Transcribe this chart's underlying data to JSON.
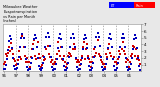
{
  "title": "Milwaukee Weather Evapotranspiration vs Rain per Month (Inches)",
  "bg_color": "#e8e8e8",
  "plot_bg": "#ffffff",
  "legend_et_color": "#0000ff",
  "legend_rain_color": "#ff0000",
  "et_color": "#0000bb",
  "rain_color": "#cc0000",
  "ylim": [
    0,
    7
  ],
  "ytick_vals": [
    1,
    2,
    3,
    4,
    5,
    6,
    7
  ],
  "years": [
    "96",
    "97",
    "98",
    "99",
    "00",
    "01",
    "02",
    "03",
    "04",
    "05",
    "06"
  ],
  "et_data": [
    0.3,
    0.4,
    1.0,
    1.8,
    3.2,
    4.5,
    5.3,
    4.8,
    3.5,
    2.0,
    0.8,
    0.3,
    0.3,
    0.5,
    1.1,
    2.2,
    3.6,
    5.0,
    5.6,
    5.0,
    3.7,
    1.9,
    0.7,
    0.2,
    0.3,
    0.4,
    1.2,
    2.0,
    3.4,
    4.8,
    5.4,
    4.9,
    3.6,
    2.0,
    0.8,
    0.3,
    0.2,
    0.5,
    1.3,
    2.2,
    3.7,
    5.1,
    5.7,
    5.1,
    3.8,
    2.1,
    0.7,
    0.2,
    0.3,
    0.4,
    1.1,
    1.9,
    3.5,
    4.9,
    5.5,
    4.8,
    3.6,
    1.9,
    0.8,
    0.2,
    0.2,
    0.5,
    1.2,
    2.1,
    3.6,
    5.0,
    5.6,
    5.0,
    3.7,
    2.0,
    0.7,
    0.2,
    0.3,
    0.4,
    1.1,
    2.0,
    3.4,
    4.8,
    5.4,
    4.9,
    3.5,
    2.0,
    0.8,
    0.2,
    0.2,
    0.5,
    1.3,
    2.2,
    3.7,
    5.1,
    5.7,
    5.1,
    3.8,
    2.1,
    0.7,
    0.2,
    0.3,
    0.4,
    1.1,
    1.9,
    3.5,
    4.9,
    5.5,
    4.8,
    3.6,
    1.9,
    0.8,
    0.2,
    0.2,
    0.5,
    1.2,
    2.1,
    3.6,
    5.0,
    5.6,
    5.0,
    3.7,
    2.0,
    0.7,
    0.2,
    0.3,
    0.4,
    1.1,
    2.0,
    3.4,
    4.8,
    5.4,
    4.9,
    3.5,
    2.0,
    0.8,
    0.2
  ],
  "rain_data": [
    1.1,
    1.4,
    2.6,
    2.3,
    2.8,
    3.6,
    3.0,
    4.2,
    3.3,
    2.6,
    1.9,
    1.6,
    0.9,
    1.1,
    1.7,
    3.0,
    2.2,
    1.9,
    5.2,
    3.6,
    2.3,
    1.4,
    2.0,
    1.4,
    1.4,
    0.7,
    2.1,
    3.3,
    4.0,
    4.6,
    2.3,
    1.9,
    3.6,
    4.3,
    2.6,
    2.0,
    0.7,
    0.9,
    2.3,
    1.7,
    1.9,
    3.3,
    3.8,
    2.6,
    2.1,
    1.4,
    1.7,
    1.1,
    1.1,
    1.4,
    1.9,
    2.6,
    4.3,
    3.0,
    2.3,
    3.6,
    1.9,
    1.7,
    2.3,
    1.4,
    0.7,
    1.1,
    2.3,
    2.8,
    2.6,
    2.3,
    3.3,
    4.0,
    3.3,
    1.9,
    1.4,
    1.7,
    1.4,
    0.9,
    1.7,
    2.3,
    3.6,
    4.3,
    1.9,
    3.3,
    4.0,
    2.3,
    1.9,
    1.4,
    0.7,
    1.4,
    2.1,
    3.3,
    2.3,
    2.8,
    4.6,
    2.6,
    2.3,
    1.7,
    1.4,
    1.1,
    1.1,
    0.7,
    2.6,
    2.1,
    3.3,
    4.0,
    2.8,
    2.3,
    3.6,
    1.9,
    2.1,
    1.4,
    1.4,
    1.1,
    1.9,
    3.0,
    2.6,
    3.3,
    4.3,
    3.0,
    2.6,
    1.4,
    1.9,
    1.7,
    0.7,
    1.4,
    2.3,
    2.6,
    3.8,
    3.6,
    2.3,
    3.3,
    1.9,
    2.3,
    1.7,
    1.1
  ],
  "n_years": 11,
  "months_per_year": 12
}
